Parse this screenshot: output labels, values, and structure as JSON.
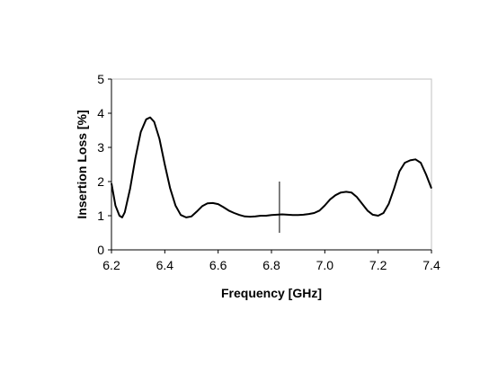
{
  "chart_data": {
    "type": "line",
    "title": "",
    "xlabel": "Frequency [GHz]",
    "ylabel": "Insertion Loss [%]",
    "xlim": [
      6.2,
      7.4
    ],
    "ylim": [
      0,
      5
    ],
    "xticks": [
      "6.2",
      "6.4",
      "6.6",
      "6.8",
      "7.0",
      "7.2",
      "7.4"
    ],
    "yticks": [
      "0",
      "1",
      "2",
      "3",
      "4",
      "5"
    ],
    "grid": false,
    "legend": "none",
    "series": [
      {
        "color": "#000000",
        "x": [
          6.2,
          6.215,
          6.23,
          6.24,
          6.25,
          6.27,
          6.29,
          6.31,
          6.33,
          6.345,
          6.36,
          6.38,
          6.4,
          6.42,
          6.44,
          6.46,
          6.48,
          6.5,
          6.52,
          6.54,
          6.56,
          6.58,
          6.6,
          6.62,
          6.64,
          6.66,
          6.68,
          6.7,
          6.72,
          6.74,
          6.76,
          6.78,
          6.8,
          6.82,
          6.84,
          6.86,
          6.88,
          6.9,
          6.92,
          6.94,
          6.96,
          6.98,
          7.0,
          7.02,
          7.04,
          7.06,
          7.08,
          7.1,
          7.12,
          7.14,
          7.16,
          7.18,
          7.2,
          7.22,
          7.24,
          7.26,
          7.28,
          7.3,
          7.32,
          7.34,
          7.36,
          7.38,
          7.4
        ],
        "y": [
          1.95,
          1.3,
          1.0,
          0.95,
          1.1,
          1.8,
          2.7,
          3.45,
          3.82,
          3.88,
          3.75,
          3.25,
          2.5,
          1.8,
          1.3,
          1.02,
          0.95,
          0.98,
          1.12,
          1.28,
          1.36,
          1.37,
          1.34,
          1.25,
          1.15,
          1.08,
          1.02,
          0.98,
          0.97,
          0.98,
          1.0,
          1.0,
          1.02,
          1.03,
          1.04,
          1.03,
          1.02,
          1.02,
          1.03,
          1.05,
          1.08,
          1.15,
          1.3,
          1.48,
          1.6,
          1.68,
          1.7,
          1.68,
          1.55,
          1.35,
          1.15,
          1.03,
          1.0,
          1.08,
          1.35,
          1.8,
          2.3,
          2.55,
          2.62,
          2.65,
          2.55,
          2.2,
          1.8
        ]
      }
    ],
    "annotations": [
      {
        "type": "vertical-marker",
        "x": 6.83,
        "y_from": 0.5,
        "y_to": 2.0
      }
    ]
  }
}
